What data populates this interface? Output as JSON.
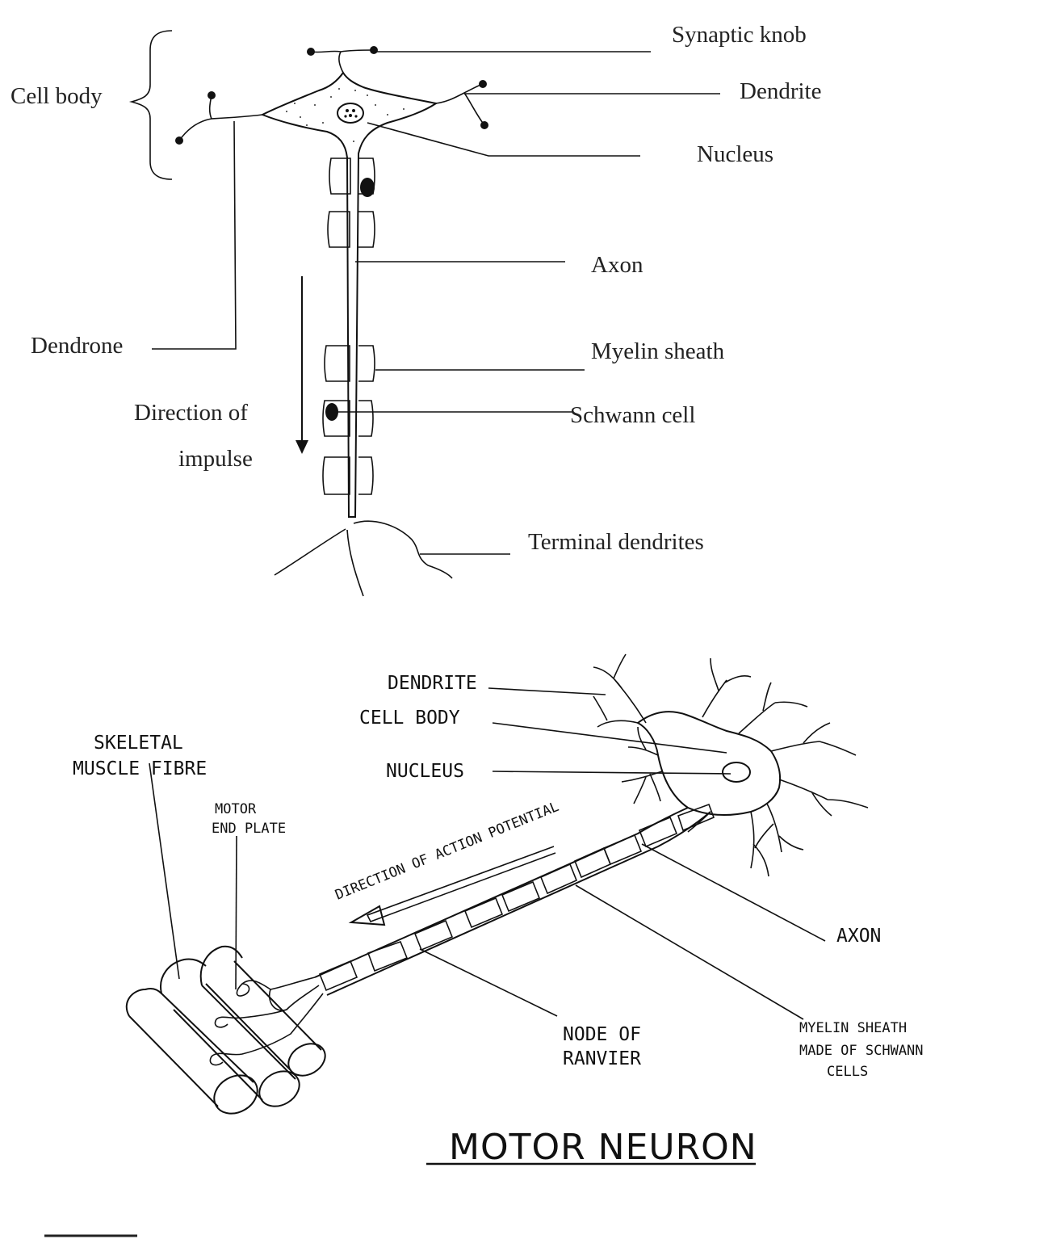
{
  "top_diagram": {
    "labels": {
      "synaptic_knob": "Synaptic knob",
      "dendrite": "Dendrite",
      "nucleus": "Nucleus",
      "cell_body": "Cell body",
      "axon": "Axon",
      "dendrone": "Dendrone",
      "myelin_sheath": "Myelin sheath",
      "direction_line1": "Direction of",
      "direction_line2": "impulse",
      "schwann_cell": "Schwann cell",
      "terminal_dendrites": "Terminal dendrites"
    }
  },
  "bottom_diagram": {
    "title": "MOTOR NEURON",
    "labels": {
      "dendrite": "DENDRITE",
      "cell_body": "CELL BODY",
      "nucleus": "NUCLEUS",
      "skeletal_line1": "SKELETAL",
      "skeletal_line2": "MUSCLE FIBRE",
      "motor_line1": "MOTOR",
      "motor_line2": "END PLATE",
      "direction": "DIRECTION OF ACTION POTENTIAL",
      "axon": "AXON",
      "node_line1": "NODE OF",
      "node_line2": "RANVIER",
      "myelin_line1": "MYELIN SHEATH",
      "myelin_line2": "MADE OF SCHWANN",
      "myelin_line3": "CELLS"
    }
  }
}
